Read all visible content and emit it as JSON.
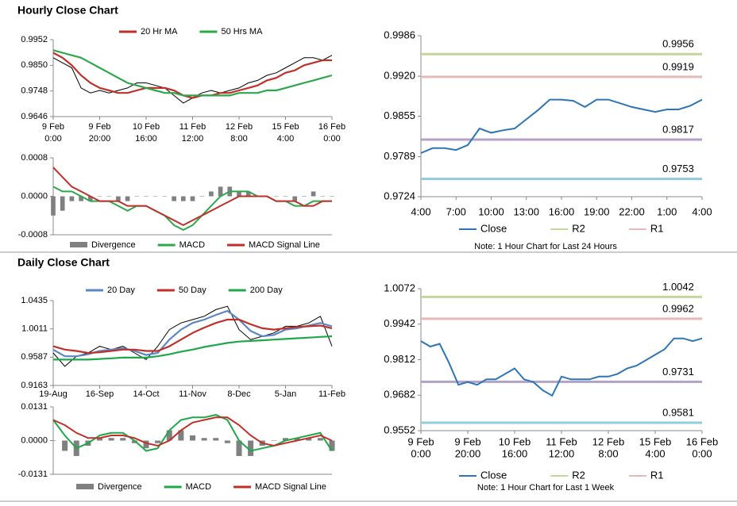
{
  "chart_data": [
    {
      "type": "line",
      "title": "Hourly Close Chart",
      "legend": "top",
      "categories": [
        [
          "9 Feb",
          "0:00"
        ],
        null,
        null,
        null,
        null,
        [
          "9 Feb",
          "20:00"
        ],
        null,
        null,
        null,
        null,
        [
          "10 Feb",
          "16:00"
        ],
        null,
        null,
        null,
        null,
        [
          "11 Feb",
          "12:00"
        ],
        null,
        null,
        null,
        null,
        [
          "12 Feb",
          "8:00"
        ],
        null,
        null,
        null,
        null,
        [
          "15 Feb",
          "4:00"
        ],
        null,
        null,
        null,
        null,
        [
          "16 Feb",
          "0:00"
        ]
      ],
      "ylim": [
        0.9646,
        0.9952
      ],
      "yticks": [
        0.9952,
        {
          "value": 0.985,
          "label": "0.9850"
        },
        0.9748,
        0.9646
      ],
      "series": [
        {
          "color": "#000000",
          "values": [
            0.988,
            0.986,
            0.984,
            0.976,
            0.974,
            0.975,
            0.974,
            0.975,
            0.976,
            0.978,
            0.978,
            0.977,
            0.976,
            0.973,
            0.97,
            0.972,
            0.974,
            0.975,
            0.974,
            0.975,
            0.976,
            0.978,
            0.979,
            0.981,
            0.982,
            0.984,
            0.986,
            0.988,
            0.988,
            0.987,
            0.989
          ]
        },
        {
          "name": "20 Hr MA",
          "color": "#c0302a",
          "values": [
            0.99,
            0.988,
            0.985,
            0.981,
            0.978,
            0.976,
            0.975,
            0.974,
            0.974,
            0.975,
            0.976,
            0.976,
            0.976,
            0.975,
            0.973,
            0.972,
            0.973,
            0.973,
            0.974,
            0.974,
            0.975,
            0.976,
            0.977,
            0.979,
            0.98,
            0.982,
            0.983,
            0.985,
            0.986,
            0.987,
            0.987
          ]
        },
        {
          "name": "50 Hrs MA",
          "color": "#2ca84c",
          "values": [
            0.991,
            0.99,
            0.989,
            0.988,
            0.986,
            0.984,
            0.982,
            0.98,
            0.978,
            0.977,
            0.976,
            0.975,
            0.974,
            0.974,
            0.973,
            0.973,
            0.973,
            0.973,
            0.973,
            0.973,
            0.974,
            0.974,
            0.974,
            0.975,
            0.975,
            0.976,
            0.977,
            0.978,
            0.979,
            0.98,
            0.981
          ]
        }
      ]
    },
    {
      "type": "combo",
      "legend": "bottom",
      "ylim": [
        -0.0008,
        0.0008
      ],
      "yticks": [
        0.0008,
        {
          "value": 0,
          "label": "0.0000"
        },
        -0.0008
      ],
      "series": [
        {
          "name": "Divergence",
          "kind": "bar",
          "color": "#808080",
          "values": [
            -0.0004,
            -0.0003,
            -0.0001,
            -0.0001,
            -0.0001,
            0,
            0,
            -0.0001,
            -0.0001,
            0,
            0,
            0,
            0,
            -0.0001,
            -0.0001,
            -0.0001,
            0,
            0.0001,
            0.0002,
            0.0002,
            0.0001,
            0.0001,
            0,
            0,
            0,
            0,
            -0.0001,
            0,
            0.0001,
            0,
            0
          ]
        },
        {
          "name": "MACD",
          "kind": "line",
          "color": "#2ca84c",
          "values": [
            0.0002,
            0.0001,
            0.0001,
            0,
            -0.0001,
            -0.0001,
            -0.0001,
            -0.0002,
            -0.0003,
            -0.0002,
            -0.0002,
            -0.0003,
            -0.0004,
            -0.0006,
            -0.0007,
            -0.0006,
            -0.0004,
            -0.0002,
            0,
            0.0001,
            0.0001,
            0.0001,
            0,
            0,
            -0.0001,
            -0.0001,
            -0.0002,
            -0.0002,
            -0.0001,
            -0.0001,
            -0.0001
          ]
        },
        {
          "name": "MACD Signal Line",
          "kind": "line",
          "color": "#c0302a",
          "values": [
            0.0006,
            0.0004,
            0.0002,
            0.0001,
            0,
            -0.0001,
            -0.0001,
            -0.0001,
            -0.0002,
            -0.0002,
            -0.0002,
            -0.0003,
            -0.0004,
            -0.0005,
            -0.0006,
            -0.0005,
            -0.0004,
            -0.0003,
            -0.0002,
            -0.0001,
            0,
            0,
            0,
            0,
            -0.0001,
            -0.0001,
            -0.0001,
            -0.0002,
            -0.0002,
            -0.0001,
            -0.0001
          ]
        }
      ]
    },
    {
      "type": "line",
      "legend": "bottom",
      "note": "Note: 1 Hour Chart for Last 24 Hours",
      "categories": [
        "4:00",
        null,
        null,
        "7:00",
        null,
        null,
        "10:00",
        null,
        null,
        "13:00",
        null,
        null,
        "16:00",
        null,
        null,
        "19:00",
        null,
        null,
        "22:00",
        null,
        null,
        "1:00",
        null,
        null,
        "4:00"
      ],
      "ylim": [
        0.9724,
        0.9986
      ],
      "yticks": [
        0.9986,
        {
          "value": 0.992,
          "label": "0.9920"
        },
        0.9855,
        0.9789,
        0.9724
      ],
      "series": [
        {
          "name": "Close",
          "color": "#2e75b6",
          "values": [
            0.9795,
            0.9803,
            0.9803,
            0.98,
            0.9808,
            0.9835,
            0.9828,
            0.9832,
            0.9835,
            0.985,
            0.9865,
            0.9882,
            0.9882,
            0.988,
            0.987,
            0.9882,
            0.9882,
            0.9876,
            0.987,
            0.9866,
            0.9862,
            0.9866,
            0.9866,
            0.9872,
            0.9882
          ]
        }
      ],
      "levels": [
        {
          "name": "R2",
          "color": "#c3d69b",
          "value": 0.9956
        },
        {
          "name": "R1",
          "color": "#e6b9b8",
          "value": 0.9919
        },
        {
          "color": "#b3a2c7",
          "value": 0.9817
        },
        {
          "color": "#93cddd",
          "value": 0.9753
        }
      ]
    },
    {
      "type": "line",
      "title": "Daily Close Chart",
      "legend": "top",
      "categories": [
        "19-Aug",
        null,
        null,
        null,
        "16-Sep",
        null,
        null,
        null,
        "14-Oct",
        null,
        null,
        null,
        "11-Nov",
        null,
        null,
        null,
        "8-Dec",
        null,
        null,
        null,
        "5-Jan",
        null,
        null,
        null,
        "11-Feb"
      ],
      "ylim": [
        0.9163,
        1.0435
      ],
      "yticks": [
        1.0435,
        1.0011,
        0.9587,
        0.9163
      ],
      "series": [
        {
          "color": "#000000",
          "values": [
            0.965,
            0.945,
            0.96,
            0.965,
            0.975,
            0.97,
            0.975,
            0.965,
            0.955,
            0.975,
            1.0,
            1.01,
            1.015,
            1.02,
            1.03,
            1.035,
            1.0,
            0.985,
            0.99,
            0.995,
            1.005,
            1.005,
            1.01,
            1.02,
            0.975
          ]
        },
        {
          "name": "20 Day",
          "color": "#5b87c5",
          "values": [
            0.97,
            0.96,
            0.96,
            0.963,
            0.968,
            0.97,
            0.972,
            0.968,
            0.962,
            0.965,
            0.985,
            1.0,
            1.01,
            1.015,
            1.022,
            1.028,
            1.015,
            0.998,
            0.99,
            0.992,
            1.0,
            1.002,
            1.006,
            1.01,
            1.005
          ]
        },
        {
          "name": "50 Day",
          "color": "#c0302a",
          "values": [
            0.975,
            0.97,
            0.968,
            0.965,
            0.966,
            0.968,
            0.97,
            0.97,
            0.968,
            0.968,
            0.975,
            0.985,
            0.995,
            1.003,
            1.01,
            1.015,
            1.015,
            1.008,
            1.002,
            1.0,
            1.002,
            1.004,
            1.005,
            1.006,
            1.002
          ]
        },
        {
          "name": "200 Day",
          "color": "#1fa84a",
          "values": [
            0.955,
            0.955,
            0.955,
            0.955,
            0.956,
            0.957,
            0.958,
            0.958,
            0.958,
            0.96,
            0.963,
            0.967,
            0.97,
            0.974,
            0.977,
            0.98,
            0.982,
            0.983,
            0.984,
            0.985,
            0.986,
            0.987,
            0.988,
            0.989,
            0.99
          ]
        }
      ]
    },
    {
      "type": "combo",
      "legend": "bottom",
      "ylim": [
        -0.0131,
        0.0131
      ],
      "yticks": [
        0.0131,
        {
          "value": 0,
          "label": "0.0000"
        },
        -0.0131
      ],
      "series": [
        {
          "name": "Divergence",
          "kind": "bar",
          "color": "#808080",
          "values": [
            0,
            -0.004,
            -0.006,
            -0.002,
            0.001,
            0.001,
            0.001,
            -0.001,
            -0.003,
            -0.001,
            0.004,
            0.004,
            0.002,
            0.001,
            0.001,
            -0.001,
            -0.006,
            -0.006,
            -0.002,
            0,
            0.001,
            0.001,
            0.001,
            0.001,
            -0.004
          ]
        },
        {
          "name": "MACD",
          "kind": "line",
          "color": "#1fa84a",
          "values": [
            0.008,
            0.002,
            -0.003,
            -0.001,
            0.002,
            0.003,
            0.003,
            0,
            -0.004,
            -0.003,
            0.004,
            0.008,
            0.009,
            0.009,
            0.01,
            0.008,
            0,
            -0.004,
            -0.003,
            -0.002,
            0,
            0.001,
            0.002,
            0.003,
            -0.004
          ]
        },
        {
          "name": "MACD Signal Line",
          "kind": "line",
          "color": "#c0302a",
          "values": [
            0.008,
            0.006,
            0.003,
            0.001,
            0.001,
            0.002,
            0.002,
            0.001,
            -0.001,
            -0.002,
            0,
            0.004,
            0.007,
            0.008,
            0.009,
            0.009,
            0.006,
            0.002,
            -0.001,
            -0.002,
            -0.001,
            0,
            0.001,
            0.002,
            0
          ]
        }
      ]
    },
    {
      "type": "line",
      "legend": "bottom",
      "note": "Note: 1 Hour Chart for Last 1 Week",
      "categories": [
        [
          "9 Feb",
          "0:00"
        ],
        null,
        null,
        null,
        null,
        [
          "9 Feb",
          "20:00"
        ],
        null,
        null,
        null,
        null,
        [
          "10 Feb",
          "16:00"
        ],
        null,
        null,
        null,
        null,
        [
          "11 Feb",
          "12:00"
        ],
        null,
        null,
        null,
        null,
        [
          "12 Feb",
          "8:00"
        ],
        null,
        null,
        null,
        null,
        [
          "15 Feb",
          "4:00"
        ],
        null,
        null,
        null,
        null,
        [
          "16 Feb",
          "0:00"
        ]
      ],
      "ylim": [
        0.9552,
        1.0072
      ],
      "yticks": [
        1.0072,
        0.9942,
        0.9812,
        0.9682,
        0.9552
      ],
      "series": [
        {
          "name": "Close",
          "color": "#2e75b6",
          "values": [
            0.988,
            0.986,
            0.987,
            0.98,
            0.972,
            0.973,
            0.972,
            0.974,
            0.974,
            0.976,
            0.978,
            0.974,
            0.973,
            0.97,
            0.968,
            0.975,
            0.974,
            0.974,
            0.974,
            0.975,
            0.975,
            0.976,
            0.978,
            0.979,
            0.981,
            0.983,
            0.985,
            0.989,
            0.989,
            0.988,
            0.989
          ]
        }
      ],
      "levels": [
        {
          "name": "R2",
          "color": "#c3d69b",
          "value": 1.0042
        },
        {
          "name": "R1",
          "color": "#e6b9b8",
          "value": 0.9962
        },
        {
          "color": "#b3a2c7",
          "value": 0.9731
        },
        {
          "color": "#93cddd",
          "value": 0.9581
        }
      ]
    }
  ]
}
